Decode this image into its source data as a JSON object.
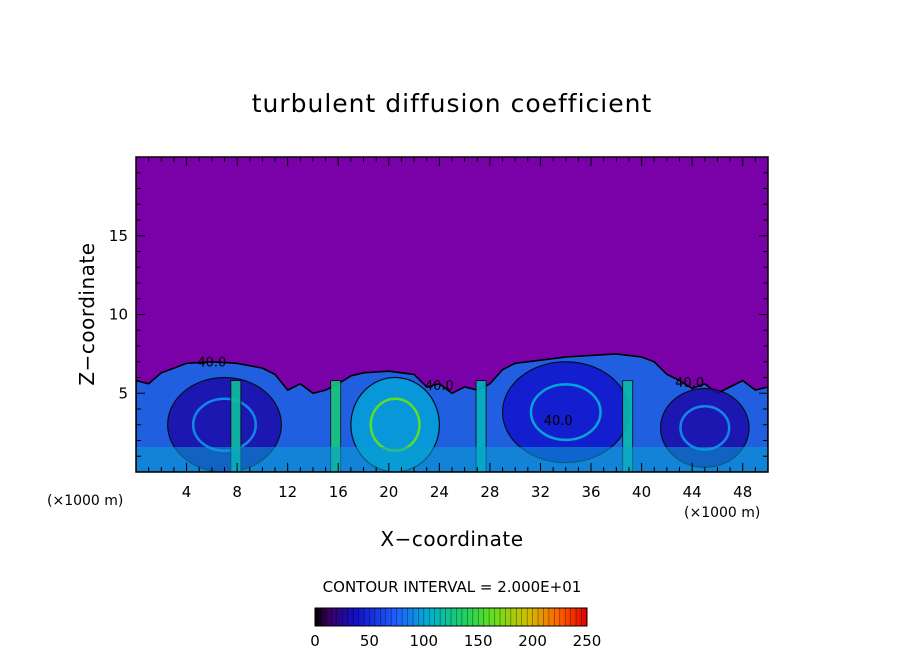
{
  "chart_data": {
    "type": "heatmap",
    "title": "turbulent diffusion coefficient",
    "xlabel": "X−coordinate",
    "ylabel": "Z−coordinate",
    "x_unit": "(×1000 m)",
    "x_unit_right": "(×1000 m)",
    "xlim": [
      0,
      50
    ],
    "ylim": [
      0,
      20
    ],
    "xticks": [
      4,
      8,
      12,
      16,
      20,
      24,
      28,
      32,
      36,
      40,
      44,
      48
    ],
    "yticks": [
      5,
      10,
      15
    ],
    "contour_interval": "CONTOUR INTERVAL = 2.000E+01",
    "contour_labels": [
      {
        "text": "40.0",
        "x": 6.0,
        "z": 6.7
      },
      {
        "text": "40.0",
        "x": 33.4,
        "z": 3.0
      },
      {
        "text": "40.0",
        "x": 24.0,
        "z": 5.2
      },
      {
        "text": "40.0",
        "x": 43.8,
        "z": 5.4
      }
    ],
    "colorbar": {
      "min": 0,
      "max": 250,
      "ticks": [
        0,
        50,
        100,
        150,
        200,
        250
      ]
    },
    "background_color": "#7a00a8",
    "boundary_layer_top": [
      [
        0,
        5.8
      ],
      [
        1,
        5.6
      ],
      [
        2,
        6.3
      ],
      [
        3,
        6.6
      ],
      [
        4,
        6.9
      ],
      [
        6,
        7.0
      ],
      [
        8,
        6.9
      ],
      [
        10,
        6.6
      ],
      [
        11,
        6.2
      ],
      [
        12,
        5.2
      ],
      [
        13,
        5.6
      ],
      [
        14,
        5.0
      ],
      [
        15,
        5.2
      ],
      [
        16,
        5.6
      ],
      [
        17,
        6.1
      ],
      [
        18,
        6.3
      ],
      [
        20,
        6.4
      ],
      [
        22,
        6.2
      ],
      [
        23,
        5.4
      ],
      [
        24,
        5.6
      ],
      [
        25,
        5.0
      ],
      [
        26,
        5.4
      ],
      [
        27,
        5.2
      ],
      [
        28,
        5.6
      ],
      [
        29,
        6.5
      ],
      [
        30,
        6.9
      ],
      [
        32,
        7.1
      ],
      [
        34,
        7.3
      ],
      [
        36,
        7.4
      ],
      [
        38,
        7.5
      ],
      [
        40,
        7.3
      ],
      [
        41,
        7.0
      ],
      [
        42,
        6.2
      ],
      [
        43,
        5.8
      ],
      [
        44,
        5.3
      ],
      [
        45,
        5.6
      ],
      [
        46,
        5.0
      ],
      [
        47,
        5.4
      ],
      [
        48,
        5.8
      ],
      [
        49,
        5.2
      ],
      [
        50,
        5.4
      ]
    ],
    "eddies": [
      {
        "cx": 7.0,
        "cz": 3.0,
        "rx": 4.5,
        "rz": 3.0,
        "level": 30
      },
      {
        "cx": 20.5,
        "cz": 3.0,
        "rx": 3.5,
        "rz": 3.0,
        "level": 100
      },
      {
        "cx": 34.0,
        "cz": 3.8,
        "rx": 5.0,
        "rz": 3.2,
        "level": 40
      },
      {
        "cx": 45.0,
        "cz": 2.8,
        "rx": 3.5,
        "rz": 2.5,
        "level": 30
      }
    ],
    "plumes": [
      {
        "x": 7.9,
        "level": 120
      },
      {
        "x": 15.8,
        "level": 130
      },
      {
        "x": 27.3,
        "level": 110
      },
      {
        "x": 38.9,
        "level": 115
      }
    ]
  }
}
